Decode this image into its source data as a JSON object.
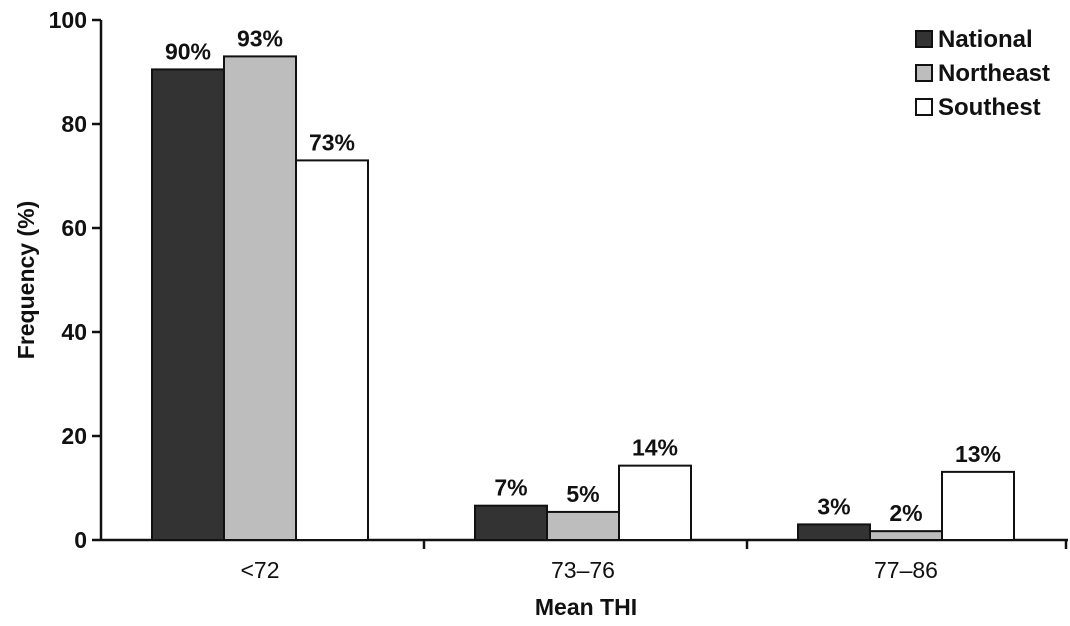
{
  "chart_data": {
    "type": "bar",
    "title": "",
    "xlabel": "Mean THI",
    "ylabel": "Frequency (%)",
    "categories": [
      "<72",
      "73–76",
      "77–86"
    ],
    "ylim": [
      0,
      100
    ],
    "yticks": [
      0,
      20,
      40,
      60,
      80,
      100
    ],
    "grid": false,
    "legend_position": "top-right",
    "series": [
      {
        "name": "National",
        "values": [
          90.5,
          6.6,
          3.0
        ],
        "labels": [
          "90%",
          "7%",
          "3%"
        ],
        "color": "#333333"
      },
      {
        "name": "Northeast",
        "values": [
          93.0,
          5.4,
          1.7
        ],
        "labels": [
          "93%",
          "5%",
          "2%"
        ],
        "color": "#bdbdbd"
      },
      {
        "name": "Southest",
        "values": [
          73.0,
          14.3,
          13.1
        ],
        "labels": [
          "73%",
          "14%",
          "13%"
        ],
        "color": "#ffffff"
      }
    ]
  }
}
